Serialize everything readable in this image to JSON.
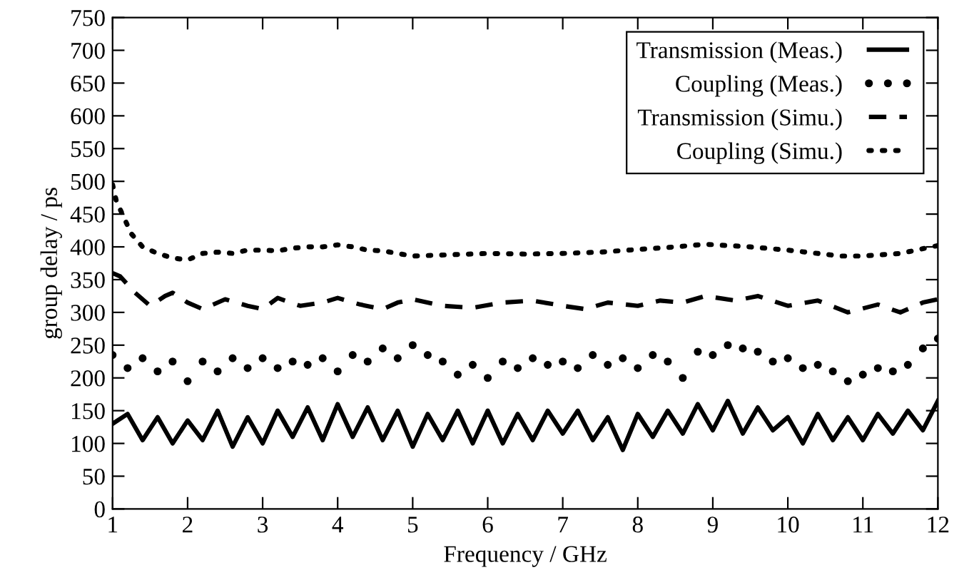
{
  "chart_data": {
    "type": "line",
    "xlabel": "Frequency / GHz",
    "ylabel": "group delay / ps",
    "xlim": [
      1,
      12
    ],
    "xticks": [
      1,
      2,
      3,
      4,
      5,
      6,
      7,
      8,
      9,
      10,
      11,
      12
    ],
    "ylim": [
      0,
      750
    ],
    "yticks": [
      0,
      50,
      100,
      150,
      200,
      250,
      300,
      350,
      400,
      450,
      500,
      550,
      600,
      650,
      700,
      750
    ],
    "grid": false,
    "legend": "top right",
    "series": [
      {
        "name": "Transmission (Meas.)",
        "color": "#000000",
        "line_style": "solid",
        "x": [
          1.0,
          1.2,
          1.4,
          1.6,
          1.8,
          2.0,
          2.2,
          2.4,
          2.6,
          2.8,
          3.0,
          3.2,
          3.4,
          3.6,
          3.8,
          4.0,
          4.2,
          4.4,
          4.6,
          4.8,
          5.0,
          5.2,
          5.4,
          5.6,
          5.8,
          6.0,
          6.2,
          6.4,
          6.6,
          6.8,
          7.0,
          7.2,
          7.4,
          7.6,
          7.8,
          8.0,
          8.2,
          8.4,
          8.6,
          8.8,
          9.0,
          9.2,
          9.4,
          9.6,
          9.8,
          10.0,
          10.2,
          10.4,
          10.6,
          10.8,
          11.0,
          11.2,
          11.4,
          11.6,
          11.8,
          12.0
        ],
        "values": [
          130,
          145,
          105,
          140,
          100,
          135,
          105,
          150,
          95,
          140,
          100,
          150,
          110,
          155,
          105,
          160,
          110,
          155,
          105,
          150,
          95,
          145,
          105,
          150,
          100,
          150,
          100,
          145,
          105,
          150,
          115,
          150,
          105,
          140,
          90,
          145,
          110,
          150,
          115,
          160,
          120,
          165,
          115,
          155,
          120,
          140,
          100,
          145,
          105,
          140,
          105,
          145,
          115,
          150,
          120,
          165
        ]
      },
      {
        "name": "Coupling (Meas.)",
        "color": "#000000",
        "type": "scatter",
        "marker": "circle",
        "x": [
          1.0,
          1.2,
          1.4,
          1.6,
          1.8,
          2.0,
          2.2,
          2.4,
          2.6,
          2.8,
          3.0,
          3.2,
          3.4,
          3.6,
          3.8,
          4.0,
          4.2,
          4.4,
          4.6,
          4.8,
          5.0,
          5.2,
          5.4,
          5.6,
          5.8,
          6.0,
          6.2,
          6.4,
          6.6,
          6.8,
          7.0,
          7.2,
          7.4,
          7.6,
          7.8,
          8.0,
          8.2,
          8.4,
          8.6,
          8.8,
          9.0,
          9.2,
          9.4,
          9.6,
          9.8,
          10.0,
          10.2,
          10.4,
          10.6,
          10.8,
          11.0,
          11.2,
          11.4,
          11.6,
          11.8,
          12.0
        ],
        "values": [
          235,
          215,
          230,
          210,
          225,
          195,
          225,
          210,
          230,
          215,
          230,
          215,
          225,
          220,
          230,
          210,
          235,
          225,
          245,
          230,
          250,
          235,
          225,
          205,
          220,
          200,
          225,
          215,
          230,
          220,
          225,
          215,
          235,
          220,
          230,
          215,
          235,
          225,
          200,
          240,
          235,
          250,
          245,
          240,
          225,
          230,
          215,
          220,
          210,
          195,
          205,
          215,
          210,
          220,
          245,
          260
        ]
      },
      {
        "name": "Transmission (Simu.)",
        "color": "#000000",
        "line_style": "dashed",
        "x": [
          1.0,
          1.1,
          1.3,
          1.5,
          1.7,
          1.8,
          2.0,
          2.2,
          2.5,
          2.8,
          3.0,
          3.2,
          3.5,
          3.8,
          4.0,
          4.3,
          4.6,
          4.8,
          5.0,
          5.4,
          5.8,
          6.2,
          6.6,
          7.0,
          7.3,
          7.6,
          8.0,
          8.3,
          8.6,
          8.9,
          9.3,
          9.6,
          10.0,
          10.4,
          10.8,
          11.2,
          11.5,
          11.8,
          12.0
        ],
        "values": [
          360,
          355,
          330,
          310,
          325,
          330,
          315,
          305,
          320,
          310,
          305,
          322,
          310,
          315,
          322,
          312,
          305,
          315,
          320,
          310,
          307,
          315,
          318,
          310,
          305,
          315,
          310,
          318,
          315,
          325,
          318,
          325,
          310,
          318,
          300,
          312,
          300,
          315,
          320
        ]
      },
      {
        "name": "Coupling (Simu.)",
        "color": "#000000",
        "line_style": "dotted",
        "x": [
          1.0,
          1.05,
          1.15,
          1.25,
          1.4,
          1.6,
          1.8,
          2.0,
          2.2,
          2.4,
          2.6,
          2.8,
          3.0,
          3.2,
          3.4,
          3.6,
          3.8,
          4.0,
          4.2,
          4.4,
          4.6,
          4.8,
          5.0,
          5.5,
          6.0,
          6.5,
          7.0,
          7.5,
          8.0,
          8.5,
          8.9,
          9.5,
          10.0,
          10.4,
          10.7,
          11.0,
          11.5,
          12.0
        ],
        "values": [
          495,
          470,
          445,
          420,
          400,
          390,
          383,
          380,
          390,
          392,
          390,
          395,
          395,
          394,
          398,
          400,
          400,
          403,
          400,
          395,
          394,
          390,
          386,
          388,
          390,
          389,
          390,
          392,
          396,
          400,
          404,
          400,
          395,
          390,
          386,
          386,
          390,
          402
        ]
      }
    ]
  }
}
